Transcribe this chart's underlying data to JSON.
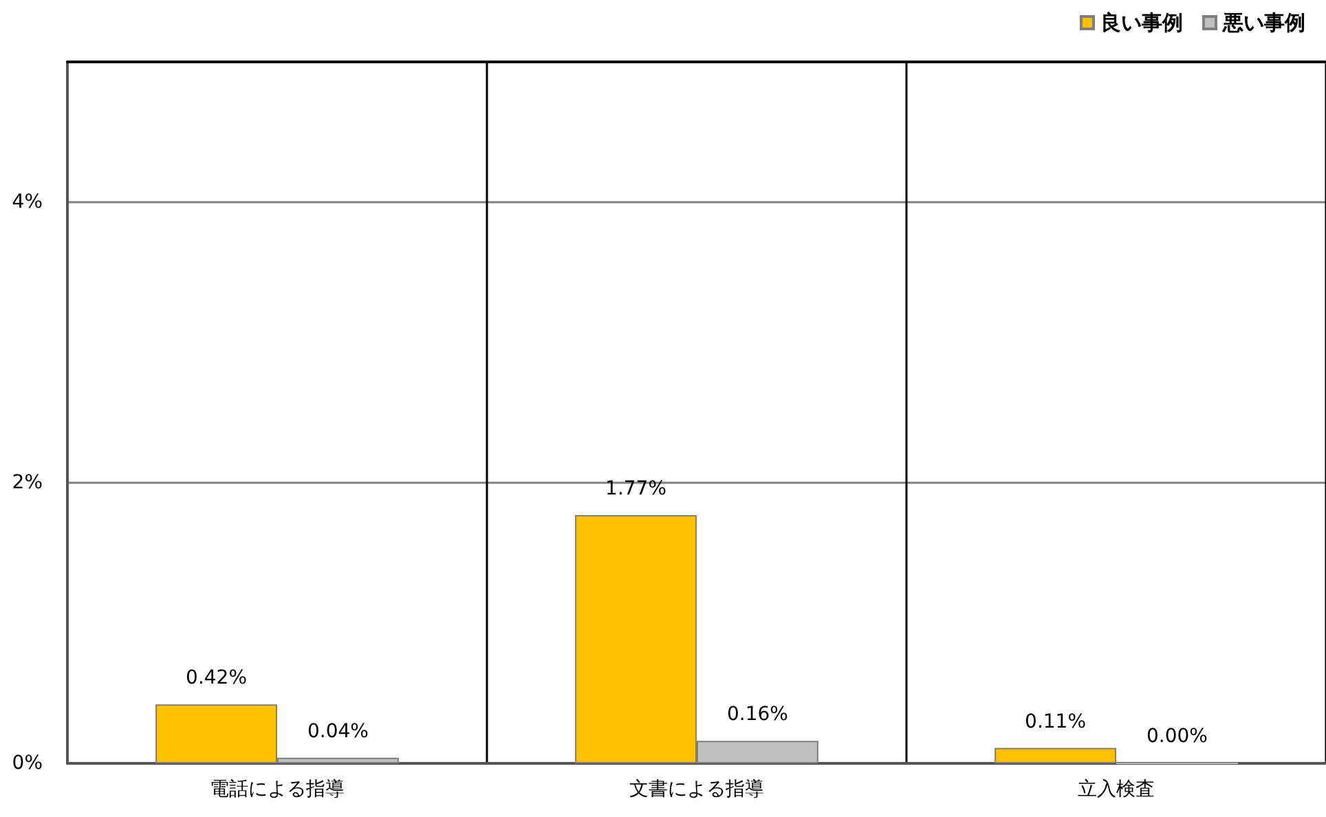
{
  "chart_data": {
    "type": "bar",
    "categories": [
      "電話による指導",
      "文書による指導",
      "立入検査"
    ],
    "series": [
      {
        "name": "良い事例",
        "color": "#ffc000",
        "values": [
          0.42,
          1.77,
          0.11
        ],
        "value_labels": [
          "0.42%",
          "1.77%",
          "0.11%"
        ]
      },
      {
        "name": "悪い事例",
        "color": "#bfbfbf",
        "values": [
          0.04,
          0.16,
          0.0
        ],
        "value_labels": [
          "0.04%",
          "0.16%",
          "0.00%"
        ]
      }
    ],
    "ylim": [
      0,
      5
    ],
    "yticks": [
      {
        "value": 0,
        "label": "0%"
      },
      {
        "value": 2,
        "label": "2%"
      },
      {
        "value": 4,
        "label": "4%"
      }
    ],
    "grid": true,
    "legend": "top right"
  }
}
